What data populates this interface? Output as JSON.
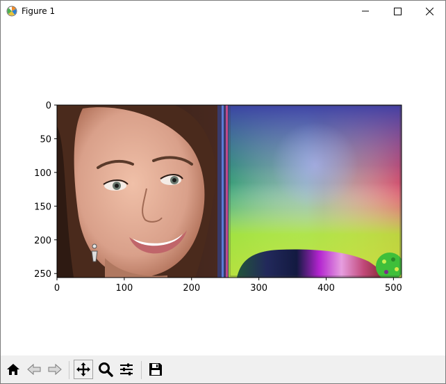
{
  "window": {
    "title": "Figure 1",
    "icon": "matplotlib-icon"
  },
  "title_controls": [
    "minimize-icon",
    "maximize-icon",
    "close-icon"
  ],
  "figure": {
    "description_panels": [
      "face photo",
      "colorful depth/normal map"
    ],
    "x_ticks": [
      {
        "value": 0,
        "label": "0"
      },
      {
        "value": 100,
        "label": "100"
      },
      {
        "value": 200,
        "label": "200"
      },
      {
        "value": 300,
        "label": "300"
      },
      {
        "value": 400,
        "label": "400"
      },
      {
        "value": 500,
        "label": "500"
      }
    ],
    "y_ticks": [
      {
        "value": 0,
        "label": "0"
      },
      {
        "value": 50,
        "label": "50"
      },
      {
        "value": 100,
        "label": "100"
      },
      {
        "value": 150,
        "label": "150"
      },
      {
        "value": 200,
        "label": "200"
      },
      {
        "value": 250,
        "label": "250"
      }
    ],
    "xlim": [
      0,
      512
    ],
    "ylim": [
      256,
      0
    ]
  },
  "toolbar": {
    "buttons": [
      {
        "name": "home-button",
        "icon": "home-icon"
      },
      {
        "name": "back-button",
        "icon": "back-arrow-icon"
      },
      {
        "name": "forward-button",
        "icon": "forward-arrow-icon"
      },
      {
        "name": "pan-button",
        "icon": "move-icon"
      },
      {
        "name": "zoom-button",
        "icon": "magnifier-icon"
      },
      {
        "name": "configure-subplots-button",
        "icon": "sliders-icon"
      },
      {
        "name": "save-button",
        "icon": "floppy-disk-icon"
      }
    ]
  },
  "colors": {
    "toolbar_bg": "#f0f0f0",
    "window_border": "#7a7a7a",
    "skin": "#d9a58c",
    "hair": "#3a2418"
  }
}
